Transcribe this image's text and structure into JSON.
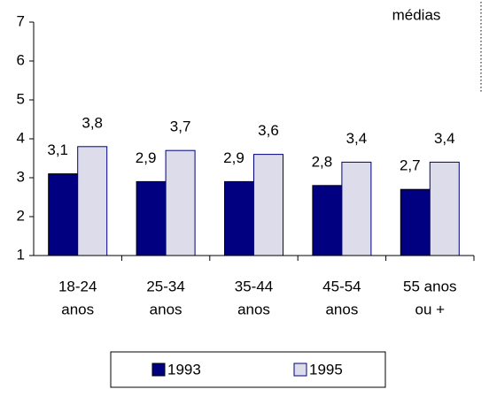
{
  "chart_data": {
    "type": "bar",
    "annotation": "médias",
    "categories": [
      [
        "18-24",
        "anos"
      ],
      [
        "25-34",
        "anos"
      ],
      [
        "35-44",
        "anos"
      ],
      [
        "45-54",
        "anos"
      ],
      [
        "55 anos",
        "ou +"
      ]
    ],
    "series": [
      {
        "name": "1993",
        "color": "#000080",
        "values": [
          3.1,
          2.9,
          2.9,
          2.8,
          2.7
        ],
        "value_labels": [
          "3,1",
          "2,9",
          "2,9",
          "2,8",
          "2,7"
        ]
      },
      {
        "name": "1995",
        "color": "#dcdcea",
        "values": [
          3.8,
          3.7,
          3.6,
          3.4,
          3.4
        ],
        "value_labels": [
          "3,8",
          "3,7",
          "3,6",
          "3,4",
          "3,4"
        ]
      }
    ],
    "ylim": [
      1,
      7
    ],
    "yticks": [
      1,
      2,
      3,
      4,
      5,
      6,
      7
    ],
    "grid": false,
    "legend": "bottom"
  }
}
